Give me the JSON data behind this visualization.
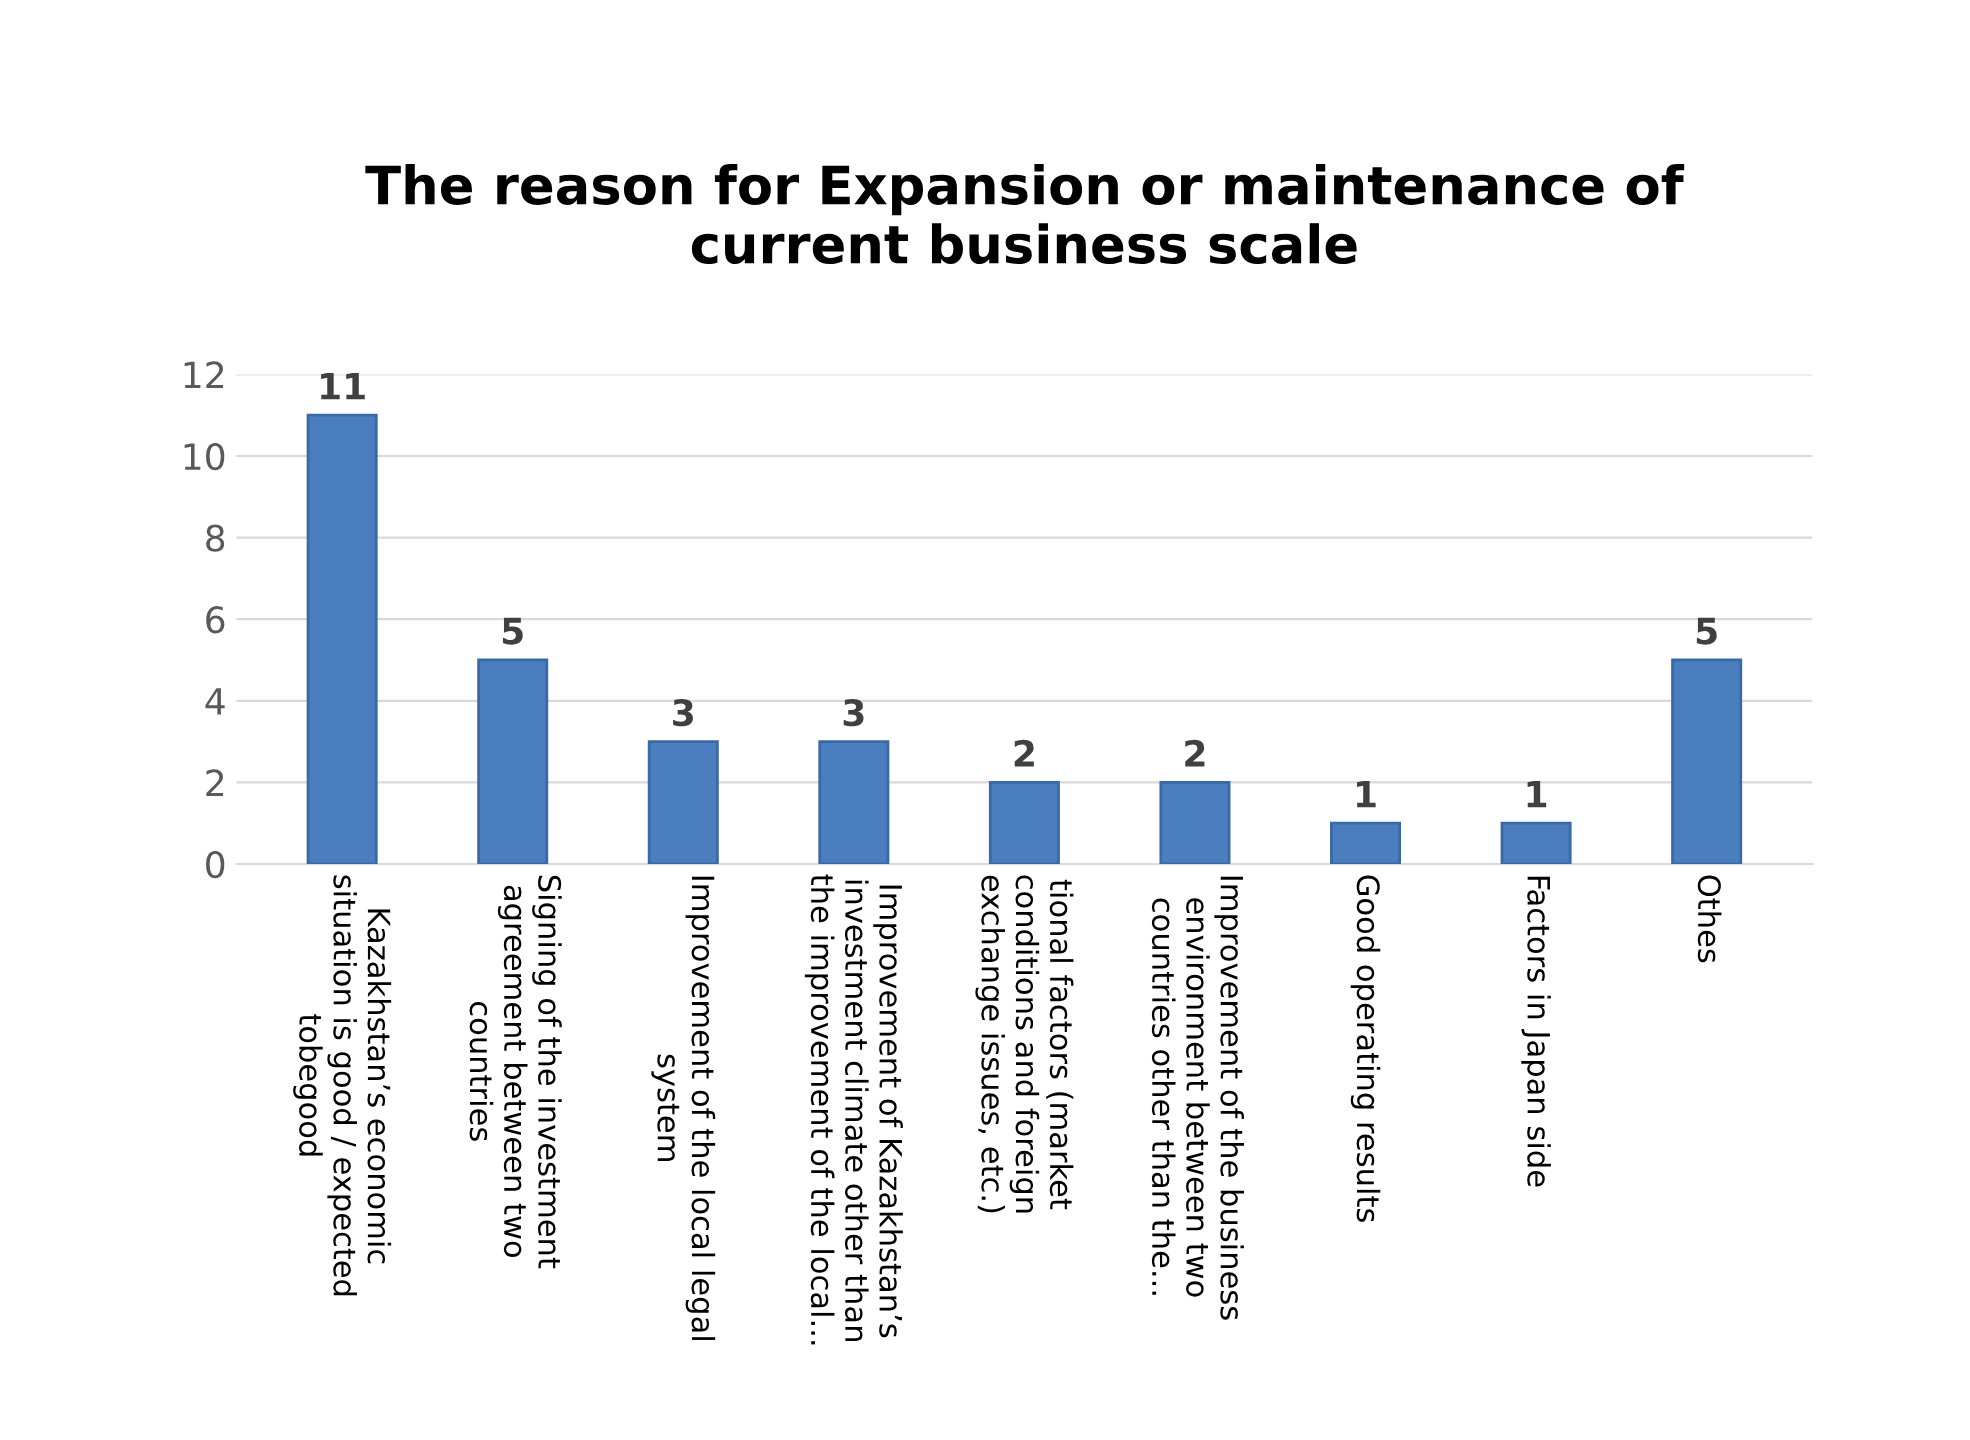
{
  "chart_data": {
    "type": "bar",
    "title": "The reason for Expansion or maintenance of\ncurrent business scale",
    "categories": [
      "Kazakhstan’s economic\nsituation is good / expected\ntobegood",
      "Signing of the investment\nagreement between two\ncountries",
      "Improvement of the local legal\nsystem",
      "Improvement of Kazakhstan’s\ninvestment climate other than\nthe improvement of the local...",
      "tional factors (market\nconditions and foreign\nexchange issues, etc.)",
      "Improvement of the business\nenvironment between two\ncountries other than the...",
      "Good operating results",
      "Factors in Japan side",
      "Othes"
    ],
    "values": [
      11,
      5,
      3,
      3,
      2,
      2,
      1,
      1,
      5
    ],
    "color": "#4a7ebf",
    "ylim": [
      0,
      12
    ],
    "yticks": [
      0,
      2,
      4,
      6,
      8,
      10,
      12
    ],
    "grid": "y",
    "data_labels": true
  }
}
